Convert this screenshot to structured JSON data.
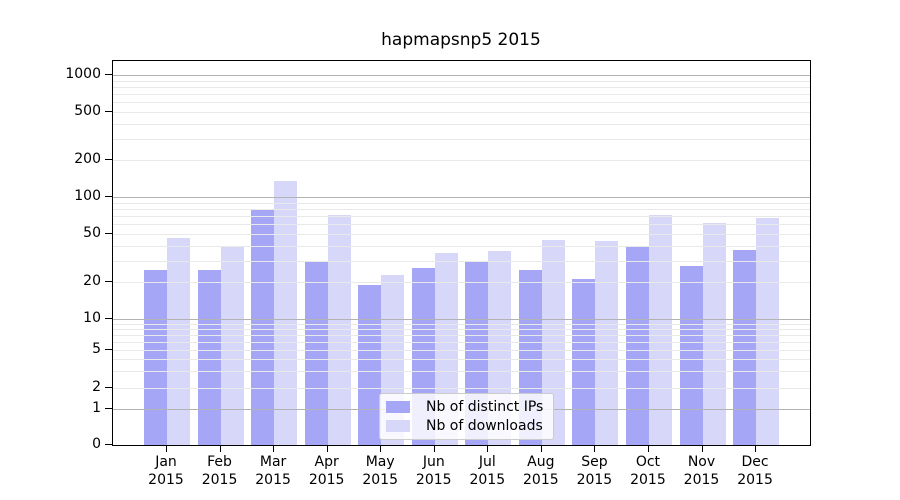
{
  "figure": {
    "title": "hapmapsnp5 2015"
  },
  "chart_data": {
    "type": "bar",
    "title": "hapmapsnp5 2015",
    "categories": [
      "Jan",
      "Feb",
      "Mar",
      "Apr",
      "May",
      "Jun",
      "Jul",
      "Aug",
      "Sep",
      "Oct",
      "Nov",
      "Dec"
    ],
    "year_label": "2015",
    "series": [
      {
        "name": "Nb of distinct IPs",
        "color": "#a6a6f6",
        "values": [
          25,
          25,
          80,
          30,
          19,
          26,
          30,
          25,
          21,
          39,
          27,
          37
        ]
      },
      {
        "name": "Nb of downloads",
        "color": "#d7d7fa",
        "values": [
          46,
          40,
          135,
          72,
          23,
          35,
          36,
          45,
          44,
          71,
          62,
          67
        ]
      }
    ],
    "yscale": "log (with 0 baseline)",
    "y_ticks": [
      0,
      1,
      2,
      5,
      10,
      20,
      50,
      100,
      200,
      500,
      1000
    ],
    "ylim": [
      0,
      1300
    ],
    "xlabel": "",
    "ylabel": "",
    "grid": true,
    "legend_position": "lower center",
    "colors": {
      "major_grid": "#b3b3b3",
      "minor_grid": "#e9e9e9",
      "axis": "#000000",
      "background": "#ffffff"
    }
  }
}
